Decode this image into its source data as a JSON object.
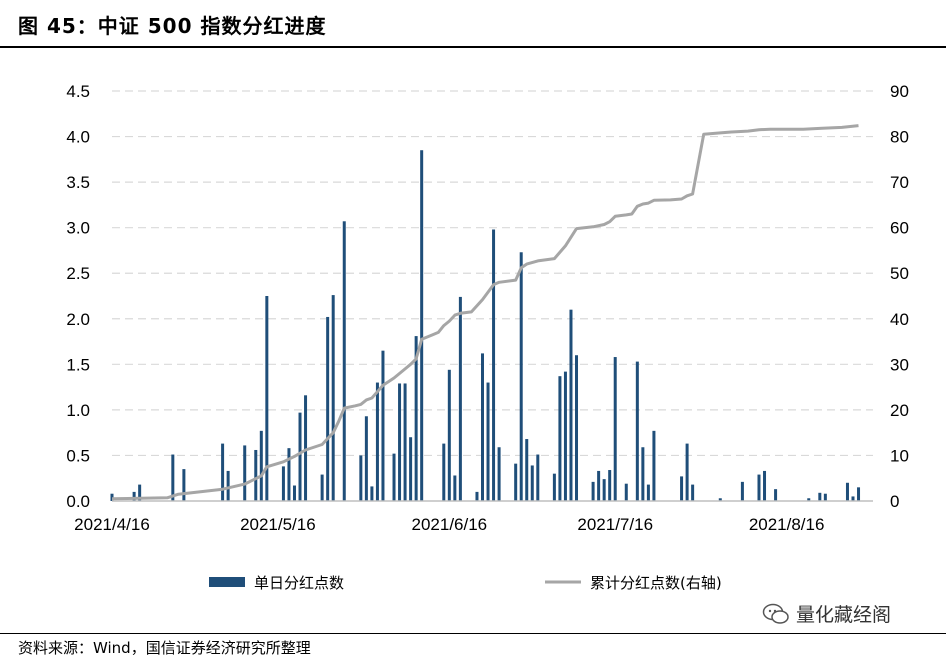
{
  "title": "图 45：中证 500 指数分红进度",
  "source": "资料来源：Wind，国信证券经济研究所整理",
  "watermark": "量化藏经阁",
  "colors": {
    "bar": "#1f4e79",
    "line": "#a6a6a6",
    "grid": "#d9d9d9"
  },
  "chart_data": {
    "type": "bar+line",
    "x_tick_labels": [
      "2021/4/16",
      "2021/5/16",
      "2021/6/16",
      "2021/7/16",
      "2021/8/16"
    ],
    "x_tick_day_index": [
      0,
      30,
      61,
      91,
      122
    ],
    "x_range_days": [
      0,
      134
    ],
    "y_left": {
      "range": [
        0,
        4.5
      ],
      "ticks": [
        "0.0",
        "0.5",
        "1.0",
        "1.5",
        "2.0",
        "2.5",
        "3.0",
        "3.5",
        "4.0",
        "4.5"
      ]
    },
    "y_right": {
      "range": [
        0,
        90
      ],
      "ticks": [
        "0",
        "10",
        "20",
        "30",
        "40",
        "50",
        "60",
        "70",
        "80",
        "90"
      ]
    },
    "legend_position": "bottom",
    "series": [
      {
        "name": "单日分红点数",
        "type": "bar",
        "axis": "left",
        "points": [
          [
            0,
            0.08
          ],
          [
            4,
            0.1
          ],
          [
            5,
            0.18
          ],
          [
            11,
            0.51
          ],
          [
            13,
            0.35
          ],
          [
            20,
            0.63
          ],
          [
            21,
            0.33
          ],
          [
            24,
            0.61
          ],
          [
            26,
            0.56
          ],
          [
            27,
            0.77
          ],
          [
            28,
            2.25
          ],
          [
            31,
            0.38
          ],
          [
            32,
            0.58
          ],
          [
            33,
            0.17
          ],
          [
            34,
            0.97
          ],
          [
            35,
            1.16
          ],
          [
            38,
            0.29
          ],
          [
            39,
            2.02
          ],
          [
            40,
            2.26
          ],
          [
            42,
            3.07
          ],
          [
            45,
            0.5
          ],
          [
            46,
            0.93
          ],
          [
            47,
            0.16
          ],
          [
            48,
            1.3
          ],
          [
            49,
            1.65
          ],
          [
            51,
            0.52
          ],
          [
            52,
            1.29
          ],
          [
            53,
            1.29
          ],
          [
            54,
            0.7
          ],
          [
            55,
            1.81
          ],
          [
            56,
            3.85
          ],
          [
            60,
            0.63
          ],
          [
            61,
            1.44
          ],
          [
            62,
            0.28
          ],
          [
            63,
            2.24
          ],
          [
            66,
            0.1
          ],
          [
            67,
            1.62
          ],
          [
            68,
            1.3
          ],
          [
            69,
            2.98
          ],
          [
            70,
            0.59
          ],
          [
            73,
            0.41
          ],
          [
            74,
            2.73
          ],
          [
            75,
            0.68
          ],
          [
            76,
            0.39
          ],
          [
            77,
            0.51
          ],
          [
            80,
            0.3
          ],
          [
            81,
            1.37
          ],
          [
            82,
            1.42
          ],
          [
            83,
            2.1
          ],
          [
            84,
            1.6
          ],
          [
            87,
            0.21
          ],
          [
            88,
            0.33
          ],
          [
            89,
            0.24
          ],
          [
            90,
            0.34
          ],
          [
            91,
            1.58
          ],
          [
            93,
            0.19
          ],
          [
            95,
            1.53
          ],
          [
            96,
            0.59
          ],
          [
            97,
            0.18
          ],
          [
            98,
            0.77
          ],
          [
            103,
            0.27
          ],
          [
            104,
            0.63
          ],
          [
            105,
            0.18
          ],
          [
            110,
            0.03
          ],
          [
            114,
            0.21
          ],
          [
            117,
            0.29
          ],
          [
            118,
            0.33
          ],
          [
            120,
            0.13
          ],
          [
            126,
            0.03
          ],
          [
            128,
            0.09
          ],
          [
            129,
            0.08
          ],
          [
            133,
            0.2
          ],
          [
            134,
            0.05
          ],
          [
            135,
            0.15
          ]
        ]
      },
      {
        "name": "累计分红点数(右轴)",
        "type": "line",
        "axis": "right",
        "points": [
          [
            0,
            0.5
          ],
          [
            10,
            0.7
          ],
          [
            12,
            1.5
          ],
          [
            20,
            2.6
          ],
          [
            24,
            3.7
          ],
          [
            27,
            5.5
          ],
          [
            28,
            7.5
          ],
          [
            31,
            8.6
          ],
          [
            33,
            9.8
          ],
          [
            35,
            11.2
          ],
          [
            38,
            12.4
          ],
          [
            40,
            15.0
          ],
          [
            41,
            17.5
          ],
          [
            42,
            20.4
          ],
          [
            44,
            20.9
          ],
          [
            45,
            21.2
          ],
          [
            46,
            22.2
          ],
          [
            47,
            22.6
          ],
          [
            48,
            24.0
          ],
          [
            49,
            25.4
          ],
          [
            51,
            27.0
          ],
          [
            53,
            29.0
          ],
          [
            54,
            30.0
          ],
          [
            55,
            31.2
          ],
          [
            56,
            35.5
          ],
          [
            58,
            36.5
          ],
          [
            59,
            37.0
          ],
          [
            60,
            38.5
          ],
          [
            61,
            39.5
          ],
          [
            62,
            40.8
          ],
          [
            63,
            41.2
          ],
          [
            65,
            41.5
          ],
          [
            67,
            44.2
          ],
          [
            69,
            47.5
          ],
          [
            70,
            48.0
          ],
          [
            73,
            48.5
          ],
          [
            74,
            51.2
          ],
          [
            75,
            52.0
          ],
          [
            77,
            52.7
          ],
          [
            80,
            53.2
          ],
          [
            82,
            56.0
          ],
          [
            84,
            59.8
          ],
          [
            87,
            60.2
          ],
          [
            89,
            60.7
          ],
          [
            90,
            61.3
          ],
          [
            91,
            62.5
          ],
          [
            93,
            62.8
          ],
          [
            94,
            63.0
          ],
          [
            95,
            64.7
          ],
          [
            96,
            65.2
          ],
          [
            97,
            65.4
          ],
          [
            98,
            66.0
          ],
          [
            101,
            66.1
          ],
          [
            103,
            66.3
          ],
          [
            104,
            67.0
          ],
          [
            105,
            67.4
          ],
          [
            107,
            80.5
          ],
          [
            110,
            80.8
          ],
          [
            112,
            81.0
          ],
          [
            115,
            81.2
          ],
          [
            117,
            81.5
          ],
          [
            119,
            81.6
          ],
          [
            125,
            81.6
          ],
          [
            128,
            81.8
          ],
          [
            132,
            82.0
          ],
          [
            135,
            82.4
          ]
        ]
      }
    ]
  }
}
